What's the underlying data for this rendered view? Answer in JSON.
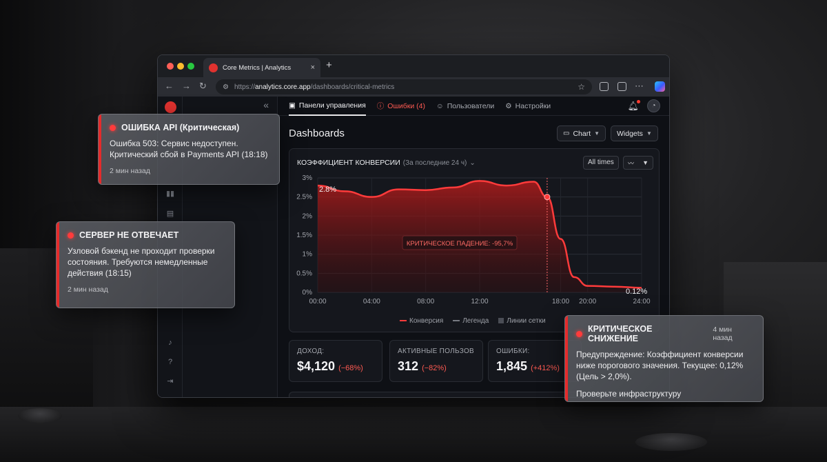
{
  "browser": {
    "tab_title": "Core Metrics | Analytics",
    "tab_close": "×",
    "new_tab": "+",
    "url_scheme": "https://",
    "url_host": "analytics.core.app",
    "url_path": "/dashboards/critical-metrics"
  },
  "nav": {
    "items": [
      {
        "label": "Панели управления",
        "icon": "dashboard-icon"
      },
      {
        "label": "Ошибки (4)",
        "icon": "alert-circle-icon"
      },
      {
        "label": "Пользователи",
        "icon": "users-icon"
      },
      {
        "label": "Настройки",
        "icon": "gear-icon"
      }
    ]
  },
  "page": {
    "title": "Dashboards",
    "chart_button": "Chart",
    "widget_button": "Widgets"
  },
  "card": {
    "title": "КОЭФФИЦИЕНТ КОНВЕРСИИ",
    "subtitle": "(За последние 24 ч)",
    "range_button": "All times",
    "annotation": "КРИТИЧЕСКОЕ ПАДЕНИЕ: -95,7%",
    "start_label": "2.8%",
    "end_label": "0.12%",
    "legend": [
      "Конверсия",
      "Легенда",
      "Линии сетки"
    ]
  },
  "chart_data": {
    "type": "area",
    "x": [
      "00:00",
      "02:00",
      "04:00",
      "06:00",
      "08:00",
      "10:00",
      "12:00",
      "14:00",
      "16:00",
      "17:00",
      "18:00",
      "19:00",
      "20:00",
      "22:00",
      "24:00"
    ],
    "series": [
      {
        "name": "Конверсия",
        "values": [
          2.8,
          2.65,
          2.5,
          2.7,
          2.68,
          2.75,
          2.92,
          2.8,
          2.9,
          2.5,
          1.4,
          0.4,
          0.17,
          0.15,
          0.12
        ]
      }
    ],
    "x_ticks": [
      "00:00",
      "04:00",
      "08:00",
      "12:00",
      "18:00",
      "20:00",
      "24:00"
    ],
    "y_ticks": [
      "3%",
      "2.5%",
      "2%",
      "1.5%",
      "1%",
      "0.5%",
      "0%"
    ],
    "ylim": [
      0,
      3
    ],
    "marker_x": "17:00",
    "grid": true,
    "colors": {
      "line": "#ff3b3b",
      "fill": "#8a1414"
    }
  },
  "stats": [
    {
      "label": "ДОХОД:",
      "value": "$4,120",
      "change": "(−68%)"
    },
    {
      "label": "АКТИВНЫЕ ПОЛЬЗОВ",
      "value": "312",
      "change": "(−82%)"
    },
    {
      "label": "ОШИБКИ:",
      "value": "1,845",
      "change": "(+412%)"
    }
  ],
  "notifications": {
    "api": {
      "title": "ОШИБКА API (Критическая)",
      "body": "Ошибка 503: Сервис недоступен. Критический сбой в Payments API (18:18)",
      "time": "2 мин назад"
    },
    "server": {
      "title": "СЕРВЕР НЕ ОТВЕЧАЕТ",
      "body": "Узловой бэкенд не проходит проверки состояния. Требуются немедленные действия (18:15)",
      "time": "2 мин назад"
    },
    "drop": {
      "title": "КРИТИЧЕСКОЕ СНИЖЕНИЕ",
      "time": "4 мин назад",
      "body": "Предупреждение: Коэффициент конверсии ниже порогового значения. Текущее: 0,12% (Цель > 2,0%).",
      "action": "Проверьте инфраструктуру"
    }
  },
  "colors": {
    "accent": "#ff3b3b",
    "background": "#0e1015"
  }
}
